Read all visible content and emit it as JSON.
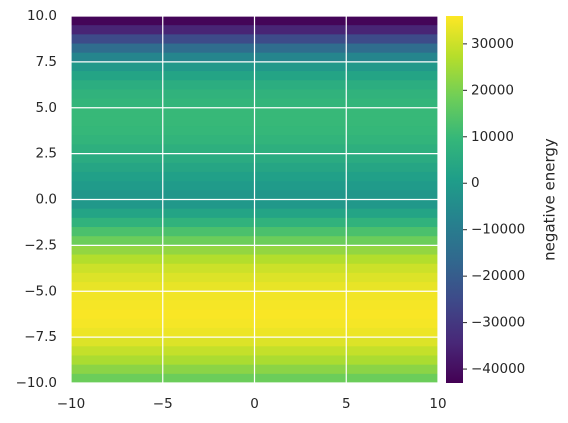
{
  "chart_data": {
    "type": "heatmap",
    "colormap": "viridis",
    "colorbar_label": "negative energy",
    "y": [
      9.75,
      9.25,
      8.75,
      8.25,
      7.75,
      7.25,
      6.75,
      6.25,
      5.75,
      5.25,
      4.75,
      4.25,
      3.75,
      3.25,
      2.75,
      2.25,
      1.75,
      1.25,
      0.75,
      0.25,
      -0.25,
      -0.75,
      -1.25,
      -1.75,
      -2.25,
      -2.75,
      -3.25,
      -3.75,
      -4.25,
      -4.75,
      -5.25,
      -5.75,
      -6.25,
      -6.75,
      -7.25,
      -7.75,
      -8.25,
      -8.75,
      -9.25,
      -9.75
    ],
    "values": [
      -42000,
      -35000,
      -25000,
      -15000,
      -7000,
      -1000,
      3000,
      6000,
      8000,
      9000,
      10000,
      10000,
      9500,
      8500,
      7000,
      5500,
      3500,
      1500,
      0,
      -1500,
      -1000,
      3000,
      8000,
      13000,
      18000,
      23000,
      27000,
      30000,
      32000,
      33500,
      34500,
      35000,
      35500,
      35000,
      34000,
      32000,
      29000,
      26000,
      22000,
      18000
    ],
    "xlim": [
      -10,
      10
    ],
    "ylim": [
      -10,
      10
    ],
    "xticks": [
      {
        "value": -10,
        "label": "−10"
      },
      {
        "value": -5,
        "label": "−5"
      },
      0,
      5,
      10
    ],
    "yticks": [
      {
        "value": -10,
        "label": "−10.0"
      },
      {
        "value": -7.5,
        "label": "−7.5"
      },
      {
        "value": -5,
        "label": "−5.0"
      },
      {
        "value": -2.5,
        "label": "−2.5"
      },
      {
        "value": 0,
        "label": "0.0"
      },
      2.5,
      {
        "value": 5,
        "label": "5.0"
      },
      7.5,
      {
        "value": 10,
        "label": "10.0"
      }
    ],
    "clim": [
      -43000,
      36000
    ],
    "cticks": [
      {
        "value": -40000,
        "label": "−40000"
      },
      {
        "value": -30000,
        "label": "−30000"
      },
      {
        "value": -20000,
        "label": "−20000"
      },
      {
        "value": -10000,
        "label": "−10000"
      },
      0,
      10000,
      20000,
      30000
    ],
    "grid": true
  }
}
